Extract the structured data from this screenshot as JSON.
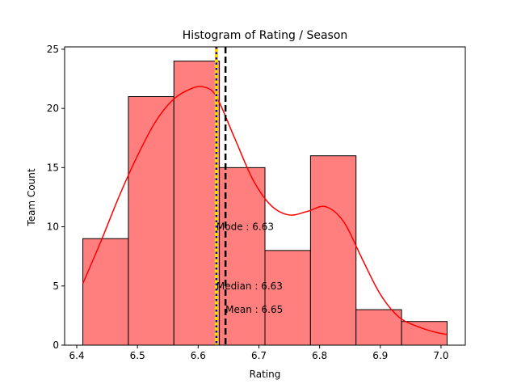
{
  "chart_data": {
    "type": "bar",
    "title": "Histogram of Rating / Season",
    "xlabel": "Rating",
    "ylabel": "Team Count",
    "xlim": [
      6.38,
      7.04
    ],
    "ylim": [
      0,
      25.2
    ],
    "xticks": [
      "6.4",
      "6.5",
      "6.6",
      "6.7",
      "6.8",
      "6.9",
      "7.0"
    ],
    "xtick_values": [
      6.4,
      6.5,
      6.6,
      6.7,
      6.8,
      6.9,
      7.0
    ],
    "yticks": [
      "0",
      "5",
      "10",
      "15",
      "20",
      "25"
    ],
    "ytick_values": [
      0,
      5,
      10,
      15,
      20,
      25
    ],
    "bin_edges": [
      6.41,
      6.485,
      6.56,
      6.635,
      6.71,
      6.785,
      6.86,
      6.935,
      7.01
    ],
    "values": [
      9,
      21,
      24,
      15,
      8,
      16,
      3,
      2
    ],
    "kde": {
      "x": [
        6.41,
        6.44,
        6.47,
        6.5,
        6.53,
        6.56,
        6.59,
        6.61,
        6.63,
        6.66,
        6.69,
        6.72,
        6.75,
        6.78,
        6.81,
        6.84,
        6.87,
        6.9,
        6.93,
        6.96,
        6.99,
        7.01
      ],
      "y": [
        5.2,
        8.8,
        12.6,
        16.0,
        18.9,
        20.8,
        21.7,
        21.8,
        21.0,
        17.5,
        14.0,
        11.8,
        11.0,
        11.3,
        11.7,
        10.4,
        7.3,
        4.3,
        2.4,
        1.6,
        1.1,
        0.9
      ]
    },
    "lines": {
      "mode": {
        "x": 6.63,
        "label": "Mode : 6.63",
        "label_y": 10
      },
      "median": {
        "x": 6.63,
        "label": "Median : 6.63",
        "label_y": 5
      },
      "mean": {
        "x": 6.645,
        "label": "Mean : 6.65",
        "label_y": 3
      }
    },
    "colors": {
      "bar_fill": "#ff7f7f",
      "bar_edge": "#000000",
      "kde": "#ff0000",
      "mode_line": "#ffd700",
      "median_line": "#0000cd",
      "mean_line": "#000000"
    },
    "grid": false,
    "legend": false
  }
}
